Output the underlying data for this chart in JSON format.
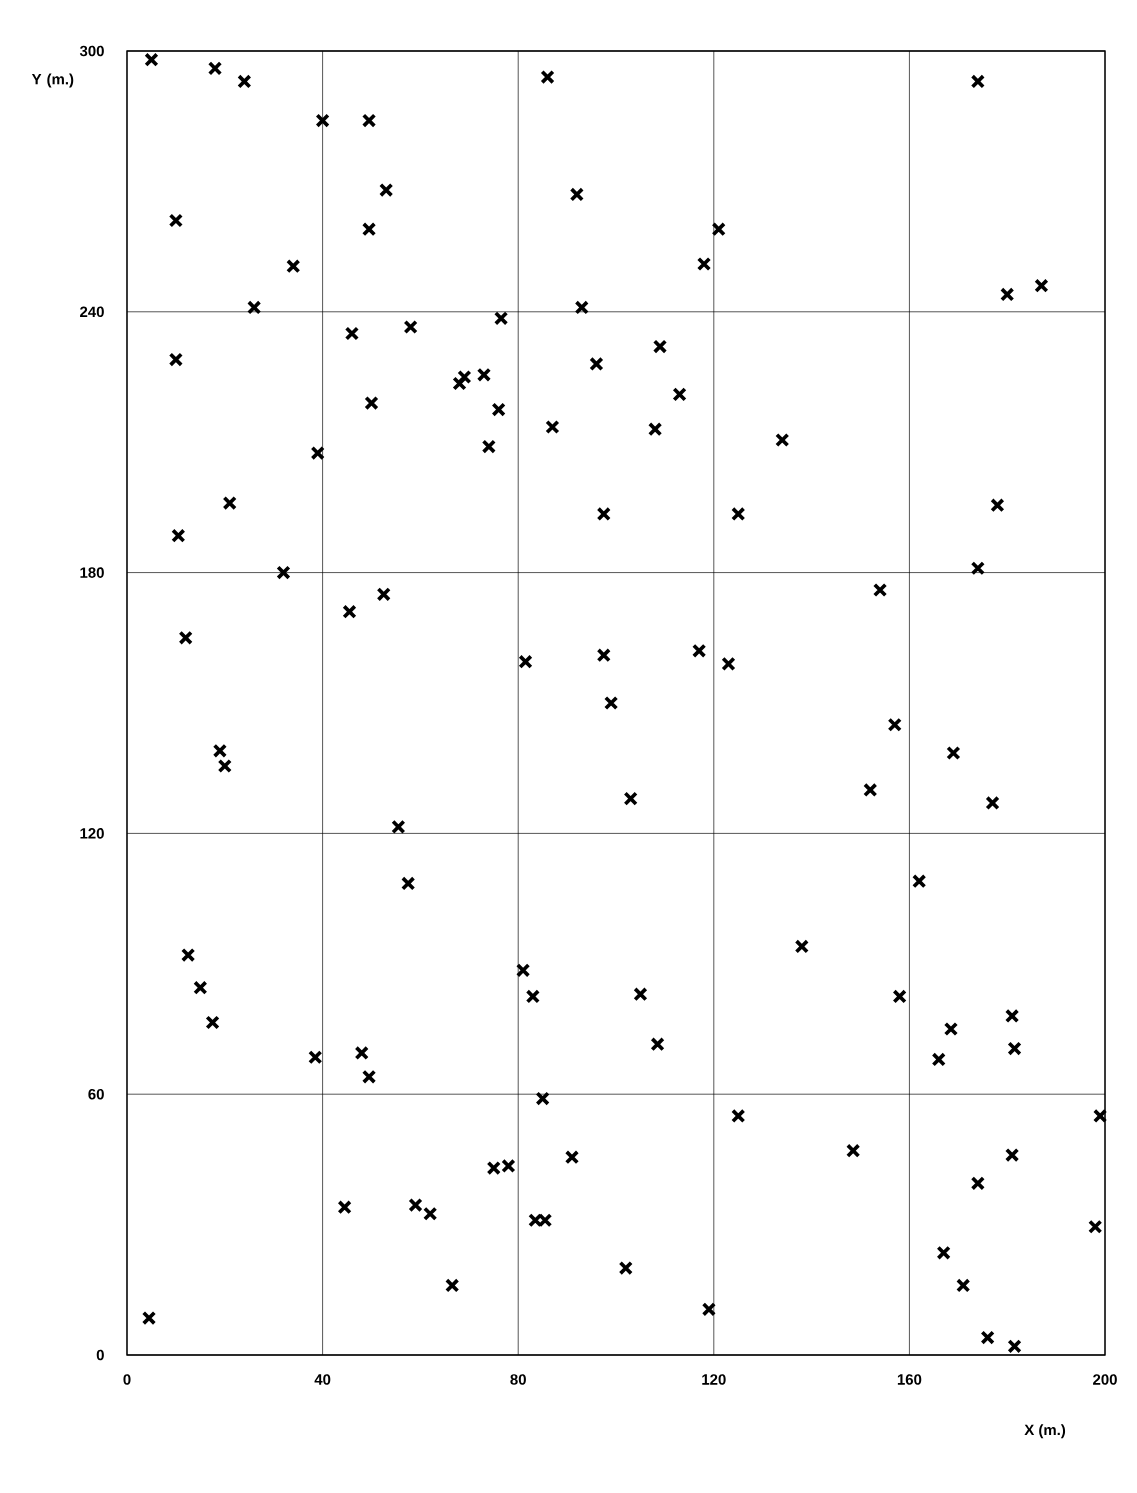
{
  "chart_data": {
    "type": "scatter",
    "xlabel": "X (m.)",
    "ylabel": "Y (m.)",
    "xlim": [
      0,
      200
    ],
    "ylim": [
      0,
      300
    ],
    "xticks": [
      0,
      40,
      80,
      120,
      160,
      200
    ],
    "yticks": [
      0,
      60,
      120,
      180,
      240,
      300
    ],
    "grid": true,
    "marker": "cross",
    "series": [
      {
        "color": "#000000",
        "x": [
          5,
          18,
          24,
          40,
          49.5,
          86,
          174,
          10,
          53,
          92,
          49.5,
          121,
          34,
          118,
          180,
          187,
          26,
          93,
          76.5,
          58,
          46,
          109,
          10,
          96,
          69,
          73,
          68,
          113,
          50,
          76,
          87,
          108,
          134,
          74,
          39,
          21,
          178,
          10.5,
          97.5,
          125,
          174,
          32,
          154,
          52.5,
          45.5,
          12,
          81.5,
          97.5,
          117,
          123,
          99,
          157,
          19,
          20,
          169,
          152,
          103,
          177,
          55.5,
          57.5,
          162,
          12.5,
          138,
          81,
          15,
          83,
          105,
          158,
          17.5,
          181,
          168.5,
          108.5,
          38.5,
          48,
          181.5,
          166,
          49.5,
          85,
          199,
          125,
          148.5,
          91,
          181,
          75,
          78,
          174,
          44.5,
          59,
          62,
          83.5,
          85.5,
          198,
          167,
          102,
          66.5,
          171,
          4.5,
          119,
          176,
          181.5
        ],
        "values": [
          298,
          296,
          293,
          284,
          284,
          294,
          293,
          261,
          268,
          267,
          259,
          259,
          250.5,
          251,
          244,
          246,
          241,
          241,
          238.5,
          236.5,
          235,
          232,
          229,
          228,
          225,
          225.5,
          223.5,
          221,
          219,
          217.5,
          213.5,
          213,
          210.5,
          209,
          207.5,
          196,
          195.5,
          188.5,
          193.5,
          193.5,
          181,
          180,
          176,
          175,
          171,
          165,
          159.5,
          161,
          162,
          159,
          150,
          145,
          139,
          135.5,
          138.5,
          130,
          128,
          127,
          121.5,
          108.5,
          109,
          92,
          94,
          88.5,
          84.5,
          82.5,
          83,
          82.5,
          76.5,
          78,
          75,
          71.5,
          68.5,
          69.5,
          70.5,
          68,
          64,
          59,
          55,
          55,
          47,
          45.5,
          46,
          43,
          43.5,
          39.5,
          34,
          34.5,
          32.5,
          31,
          31,
          29.5,
          23.5,
          20,
          16,
          16,
          8.5,
          10.5,
          4,
          2
        ]
      }
    ]
  }
}
